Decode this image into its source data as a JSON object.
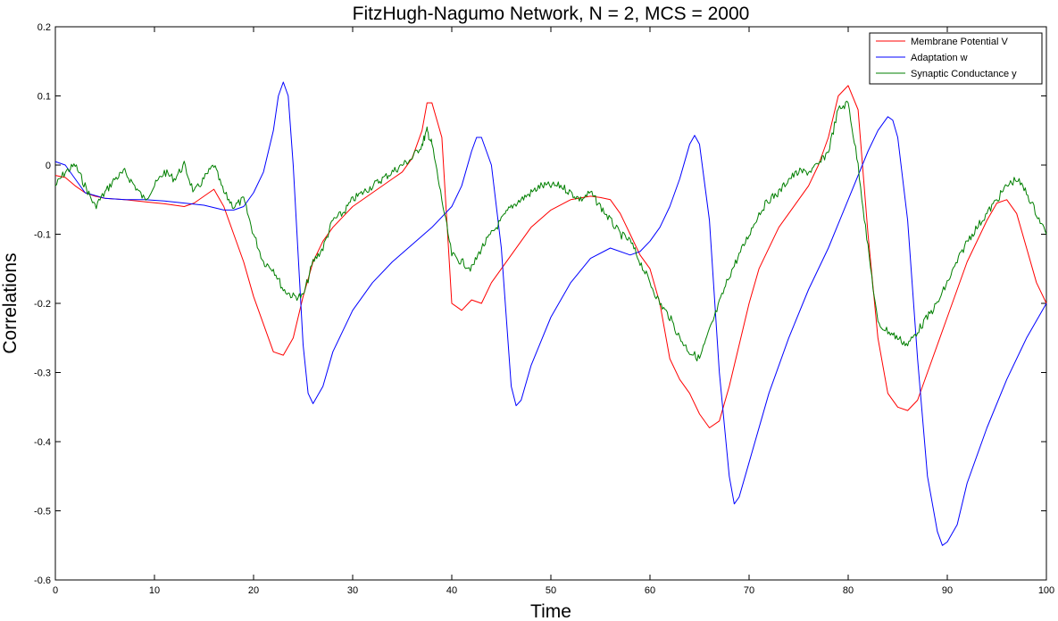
{
  "chart_data": {
    "type": "line",
    "title": "FitzHugh-Nagumo Network, N = 2, MCS = 2000",
    "xlabel": "Time",
    "ylabel": "Correlations",
    "xlim": [
      0,
      100
    ],
    "ylim": [
      -0.6,
      0.2
    ],
    "xticks": [
      0,
      10,
      20,
      30,
      40,
      50,
      60,
      70,
      80,
      90,
      100
    ],
    "xtick_labels": [
      "0",
      "10",
      "20",
      "30",
      "40",
      "50",
      "60",
      "70",
      "80",
      "90",
      "100"
    ],
    "yticks": [
      0.2,
      0.1,
      0,
      -0.1,
      -0.2,
      -0.3,
      -0.4,
      -0.5,
      -0.6
    ],
    "ytick_labels": [
      "0.2",
      "0.1",
      "0",
      "-0.1",
      "-0.2",
      "-0.3",
      "-0.4",
      "-0.5",
      "-0.6"
    ],
    "grid": false,
    "legend_position": "top-right",
    "series": [
      {
        "name": "Membrane Potential V",
        "color": "#ff0000",
        "x": [
          0,
          1,
          2,
          3,
          4,
          5,
          7,
          9,
          11,
          13,
          14,
          15,
          16,
          17,
          18,
          19,
          20,
          21,
          22,
          23,
          24,
          25,
          26,
          27,
          28,
          30,
          32,
          34,
          35,
          36,
          37,
          37.5,
          38,
          39,
          40,
          41,
          42,
          43,
          44,
          46,
          48,
          50,
          52,
          54,
          55,
          56,
          57,
          58,
          59,
          60,
          61,
          62,
          63,
          64,
          65,
          66,
          67,
          68,
          69,
          70,
          71,
          73,
          75,
          76,
          77,
          78,
          79,
          80,
          81,
          82,
          83,
          84,
          85,
          86,
          87,
          88,
          90,
          92,
          94,
          95,
          96,
          97,
          98,
          99,
          100
        ],
        "y": [
          -0.015,
          -0.018,
          -0.03,
          -0.04,
          -0.045,
          -0.048,
          -0.05,
          -0.053,
          -0.056,
          -0.06,
          -0.055,
          -0.045,
          -0.035,
          -0.06,
          -0.1,
          -0.14,
          -0.19,
          -0.23,
          -0.27,
          -0.275,
          -0.25,
          -0.19,
          -0.14,
          -0.11,
          -0.09,
          -0.06,
          -0.04,
          -0.02,
          -0.01,
          0.01,
          0.05,
          0.09,
          0.09,
          0.04,
          -0.2,
          -0.21,
          -0.195,
          -0.2,
          -0.17,
          -0.13,
          -0.09,
          -0.065,
          -0.05,
          -0.045,
          -0.047,
          -0.05,
          -0.07,
          -0.1,
          -0.13,
          -0.15,
          -0.2,
          -0.28,
          -0.31,
          -0.33,
          -0.36,
          -0.38,
          -0.37,
          -0.32,
          -0.26,
          -0.2,
          -0.15,
          -0.09,
          -0.05,
          -0.03,
          0.0,
          0.04,
          0.1,
          0.115,
          0.08,
          -0.1,
          -0.25,
          -0.33,
          -0.35,
          -0.355,
          -0.34,
          -0.3,
          -0.22,
          -0.14,
          -0.08,
          -0.055,
          -0.05,
          -0.07,
          -0.12,
          -0.17,
          -0.2
        ]
      },
      {
        "name": "Adaptation w",
        "color": "#0000ff",
        "x": [
          0,
          1,
          2,
          3,
          5,
          7,
          9,
          11,
          13,
          15,
          17,
          18,
          19,
          20,
          21,
          22,
          22.5,
          23,
          23.5,
          24,
          25,
          25.5,
          26,
          27,
          28,
          30,
          32,
          34,
          36,
          38,
          40,
          41,
          42,
          42.5,
          43,
          44,
          45,
          46,
          46.5,
          47,
          48,
          50,
          52,
          54,
          56,
          58,
          59,
          60,
          61,
          62,
          63,
          64,
          64.5,
          65,
          66,
          67,
          68,
          68.5,
          69,
          70,
          72,
          74,
          76,
          78,
          80,
          82,
          83,
          84,
          84.5,
          85,
          86,
          87,
          88,
          89,
          89.5,
          90,
          91,
          92,
          94,
          96,
          98,
          100
        ],
        "y": [
          0.005,
          0.0,
          -0.02,
          -0.04,
          -0.048,
          -0.05,
          -0.05,
          -0.052,
          -0.055,
          -0.058,
          -0.065,
          -0.065,
          -0.06,
          -0.04,
          -0.01,
          0.05,
          0.1,
          0.12,
          0.1,
          0.0,
          -0.26,
          -0.33,
          -0.345,
          -0.32,
          -0.27,
          -0.21,
          -0.17,
          -0.14,
          -0.115,
          -0.09,
          -0.06,
          -0.03,
          0.02,
          0.04,
          0.04,
          0.0,
          -0.12,
          -0.32,
          -0.348,
          -0.34,
          -0.29,
          -0.22,
          -0.17,
          -0.135,
          -0.12,
          -0.13,
          -0.125,
          -0.11,
          -0.09,
          -0.06,
          -0.02,
          0.03,
          0.043,
          0.03,
          -0.08,
          -0.3,
          -0.45,
          -0.49,
          -0.48,
          -0.43,
          -0.33,
          -0.25,
          -0.18,
          -0.12,
          -0.05,
          0.02,
          0.05,
          0.07,
          0.065,
          0.04,
          -0.08,
          -0.28,
          -0.45,
          -0.53,
          -0.55,
          -0.545,
          -0.52,
          -0.46,
          -0.38,
          -0.31,
          -0.25,
          -0.2
        ]
      },
      {
        "name": "Synaptic Conductance y",
        "color": "#007f00",
        "x": [
          0,
          1,
          2,
          3,
          4,
          5,
          6,
          7,
          8,
          9,
          10,
          11,
          12,
          13,
          14,
          15,
          16,
          17,
          18,
          19,
          20,
          21,
          22,
          23,
          24,
          25,
          26,
          27,
          28,
          29,
          30,
          31,
          32,
          33,
          34,
          35,
          36,
          37,
          37.5,
          38,
          39,
          40,
          41,
          42,
          43,
          44,
          45,
          46,
          47,
          48,
          49,
          50,
          51,
          52,
          53,
          54,
          55,
          56,
          57,
          58,
          59,
          60,
          61,
          62,
          63,
          64,
          65,
          66,
          67,
          68,
          69,
          70,
          71,
          72,
          73,
          74,
          75,
          76,
          77,
          78,
          79,
          80,
          81,
          82,
          83,
          84,
          85,
          86,
          87,
          88,
          89,
          90,
          91,
          92,
          93,
          94,
          95,
          96,
          97,
          98,
          99,
          100
        ],
        "y": [
          -0.03,
          -0.01,
          0.0,
          -0.03,
          -0.06,
          -0.04,
          -0.02,
          -0.01,
          -0.03,
          -0.05,
          -0.03,
          -0.01,
          -0.02,
          0.0,
          -0.04,
          -0.02,
          0.0,
          -0.04,
          -0.06,
          -0.05,
          -0.1,
          -0.14,
          -0.15,
          -0.18,
          -0.19,
          -0.19,
          -0.14,
          -0.12,
          -0.08,
          -0.07,
          -0.05,
          -0.04,
          -0.03,
          -0.02,
          -0.01,
          0.0,
          0.01,
          0.03,
          0.05,
          0.03,
          -0.05,
          -0.13,
          -0.14,
          -0.15,
          -0.12,
          -0.1,
          -0.08,
          -0.06,
          -0.05,
          -0.04,
          -0.03,
          -0.03,
          -0.03,
          -0.04,
          -0.05,
          -0.04,
          -0.06,
          -0.08,
          -0.1,
          -0.11,
          -0.14,
          -0.17,
          -0.2,
          -0.22,
          -0.25,
          -0.27,
          -0.28,
          -0.24,
          -0.2,
          -0.16,
          -0.13,
          -0.1,
          -0.07,
          -0.05,
          -0.04,
          -0.02,
          -0.01,
          -0.01,
          0.0,
          0.02,
          0.08,
          0.09,
          0.0,
          -0.12,
          -0.23,
          -0.24,
          -0.25,
          -0.26,
          -0.24,
          -0.22,
          -0.2,
          -0.17,
          -0.14,
          -0.11,
          -0.09,
          -0.07,
          -0.05,
          -0.03,
          -0.02,
          -0.04,
          -0.07,
          -0.1
        ]
      }
    ]
  }
}
